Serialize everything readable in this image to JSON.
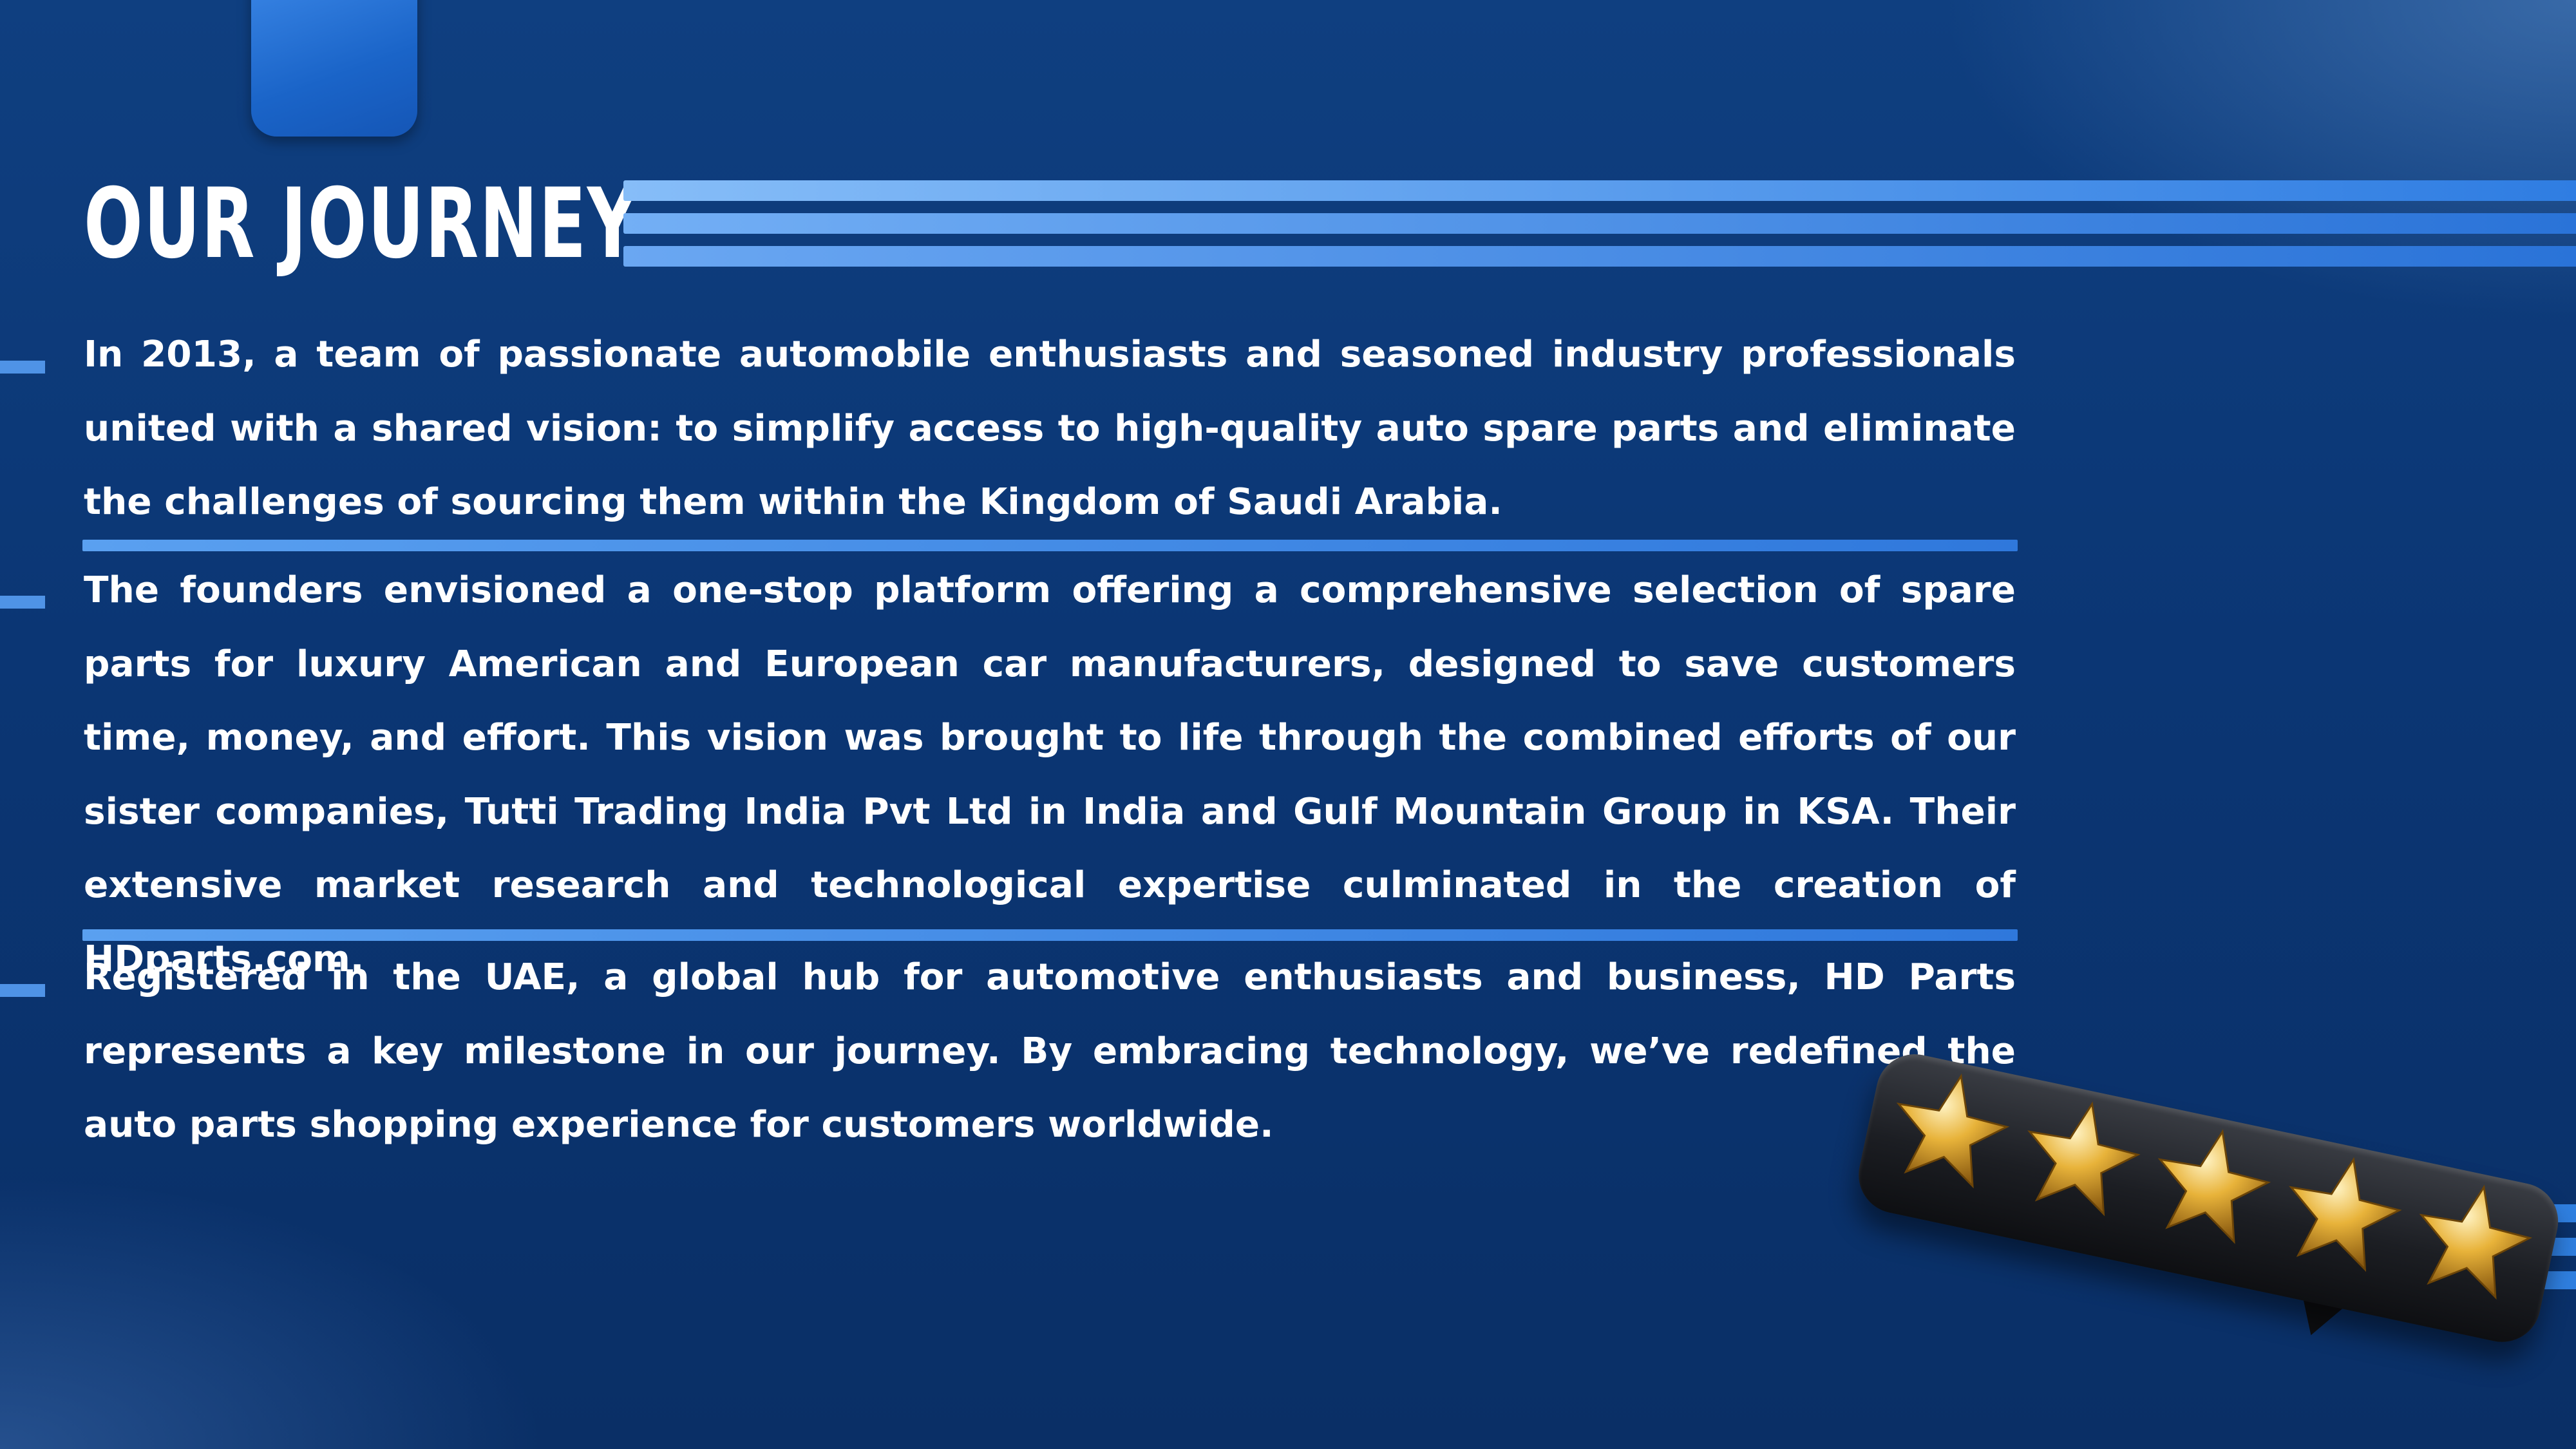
{
  "slide": {
    "title": "OUR JOURNEY",
    "paragraphs": [
      "In 2013, a team of passionate automobile enthusiasts and seasoned industry professionals united with a shared vision: to simplify access to high-quality auto spare parts and eliminate the challenges of sourcing them within the Kingdom of Saudi Arabia.",
      "The founders envisioned a one-stop platform offering a comprehensive selection of spare parts for luxury American and European car manufacturers, designed to save customers time, money, and effort. This vision was brought to life through the combined efforts of our sister companies, Tutti Trading India Pvt Ltd in India and Gulf Mountain Group in KSA. Their extensive market research and technological expertise culminated in the creation of HDparts.com.",
      "Registered in the UAE, a global hub for automotive enthusiasts and business, HD Parts represents a key milestone in our journey. By embracing technology, we’ve redefined the auto parts shopping experience for customers worldwide."
    ],
    "rating_graphic": {
      "stars": 5,
      "max_stars": 5,
      "icon": "star-icon"
    },
    "colors": {
      "background": "#0b3674",
      "accent": "#4f93e6",
      "text": "#ffffff",
      "star_gold": "#e8b33a"
    }
  }
}
